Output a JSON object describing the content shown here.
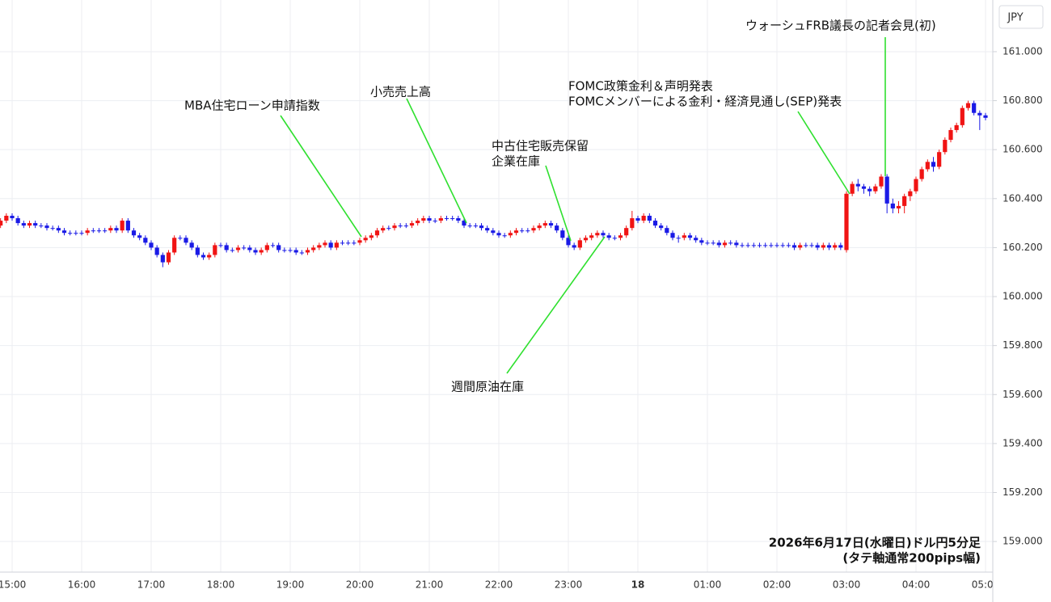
{
  "chart_data": {
    "type": "candlestick",
    "y_axis_label": "JPY",
    "grid": true,
    "up_color": "#f01414",
    "down_color": "#1a1ae6",
    "ylim": [
      158.875,
      161.211
    ],
    "yticks": [
      {
        "value": 159.0,
        "label": "159.000"
      },
      {
        "value": 159.2,
        "label": "159.200"
      },
      {
        "value": 159.4,
        "label": "159.400"
      },
      {
        "value": 159.6,
        "label": "159.600"
      },
      {
        "value": 159.8,
        "label": "159.800"
      },
      {
        "value": 160.0,
        "label": "160.000"
      },
      {
        "value": 160.2,
        "label": "160.200"
      },
      {
        "value": 160.4,
        "label": "160.400"
      },
      {
        "value": 160.6,
        "label": "160.600"
      },
      {
        "value": 160.8,
        "label": "160.800"
      },
      {
        "value": 161.0,
        "label": "161.000"
      }
    ],
    "categories": [
      null,
      null,
      "15:00",
      null,
      null,
      null,
      null,
      null,
      null,
      null,
      null,
      null,
      null,
      null,
      "16:00",
      null,
      null,
      null,
      null,
      null,
      null,
      null,
      null,
      null,
      null,
      null,
      "17:00",
      null,
      null,
      null,
      null,
      null,
      null,
      null,
      null,
      null,
      null,
      null,
      "18:00",
      null,
      null,
      null,
      null,
      null,
      null,
      null,
      null,
      null,
      null,
      null,
      "19:00",
      null,
      null,
      null,
      null,
      null,
      null,
      null,
      null,
      null,
      null,
      null,
      "20:00",
      null,
      null,
      null,
      null,
      null,
      null,
      null,
      null,
      null,
      null,
      null,
      "21:00",
      null,
      null,
      null,
      null,
      null,
      null,
      null,
      null,
      null,
      null,
      null,
      "22:00",
      null,
      null,
      null,
      null,
      null,
      null,
      null,
      null,
      null,
      null,
      null,
      "23:00",
      null,
      null,
      null,
      null,
      null,
      null,
      null,
      null,
      null,
      null,
      null,
      "18",
      null,
      null,
      null,
      null,
      null,
      null,
      null,
      null,
      null,
      null,
      null,
      "01:00",
      null,
      null,
      null,
      null,
      null,
      null,
      null,
      null,
      null,
      null,
      null,
      "02:00",
      null,
      null,
      null,
      null,
      null,
      null,
      null,
      null,
      null,
      null,
      null,
      "03:00",
      null,
      null,
      null,
      null,
      null,
      null,
      null,
      null,
      null,
      null,
      null,
      "04:00",
      null,
      null,
      null,
      null,
      null,
      null,
      null,
      null,
      null,
      null,
      null,
      "05:00"
    ],
    "open": [
      160.29,
      160.31,
      160.33,
      160.32,
      160.3,
      160.29,
      160.3,
      160.29,
      160.29,
      160.28,
      160.28,
      160.27,
      160.26,
      160.26,
      160.26,
      160.26,
      160.27,
      160.27,
      160.27,
      160.27,
      160.28,
      160.27,
      160.31,
      160.27,
      160.25,
      160.24,
      160.22,
      160.2,
      160.17,
      160.14,
      160.18,
      160.24,
      160.24,
      160.22,
      160.2,
      160.17,
      160.16,
      160.17,
      160.21,
      160.21,
      160.19,
      160.19,
      160.2,
      160.2,
      160.19,
      160.18,
      160.19,
      160.21,
      160.21,
      160.19,
      160.19,
      160.19,
      160.18,
      160.18,
      160.19,
      160.2,
      160.21,
      160.22,
      160.2,
      160.22,
      160.22,
      160.22,
      160.22,
      160.23,
      160.24,
      160.25,
      160.27,
      160.28,
      160.28,
      160.29,
      160.29,
      160.29,
      160.3,
      160.31,
      160.32,
      160.31,
      160.31,
      160.32,
      160.32,
      160.32,
      160.31,
      160.29,
      160.29,
      160.29,
      160.28,
      160.27,
      160.26,
      160.25,
      160.25,
      160.26,
      160.27,
      160.27,
      160.27,
      160.28,
      160.29,
      160.3,
      160.29,
      160.27,
      160.24,
      160.21,
      160.2,
      160.23,
      160.24,
      160.25,
      160.26,
      160.25,
      160.24,
      160.24,
      160.25,
      160.28,
      160.32,
      160.31,
      160.33,
      160.31,
      160.29,
      160.28,
      160.26,
      160.24,
      160.24,
      160.25,
      160.24,
      160.23,
      160.22,
      160.22,
      160.22,
      160.21,
      160.22,
      160.22,
      160.21,
      160.21,
      160.21,
      160.21,
      160.21,
      160.21,
      160.21,
      160.21,
      160.21,
      160.21,
      160.2,
      160.21,
      160.21,
      160.21,
      160.2,
      160.21,
      160.2,
      160.21,
      160.19,
      160.42,
      160.46,
      160.45,
      160.44,
      160.43,
      160.45,
      160.49,
      160.38,
      160.36,
      160.37,
      160.41,
      160.43,
      160.48,
      160.52,
      160.55,
      160.53,
      160.59,
      160.64,
      160.68,
      160.7,
      160.77,
      160.79,
      160.75,
      160.74
    ],
    "high": [
      160.32,
      160.34,
      160.34,
      160.33,
      160.31,
      160.31,
      160.31,
      160.3,
      160.3,
      160.29,
      160.29,
      160.28,
      160.27,
      160.27,
      160.27,
      160.28,
      160.28,
      160.28,
      160.28,
      160.29,
      160.29,
      160.32,
      160.32,
      160.28,
      160.26,
      160.25,
      160.23,
      160.21,
      160.18,
      160.19,
      160.25,
      160.25,
      160.25,
      160.23,
      160.21,
      160.18,
      160.18,
      160.22,
      160.22,
      160.22,
      160.2,
      160.21,
      160.21,
      160.21,
      160.2,
      160.2,
      160.22,
      160.22,
      160.22,
      160.2,
      160.2,
      160.2,
      160.19,
      160.2,
      160.21,
      160.22,
      160.23,
      160.23,
      160.23,
      160.23,
      160.23,
      160.23,
      160.24,
      160.25,
      160.26,
      160.28,
      160.29,
      160.29,
      160.3,
      160.3,
      160.3,
      160.31,
      160.32,
      160.33,
      160.33,
      160.32,
      160.33,
      160.33,
      160.33,
      160.33,
      160.32,
      160.3,
      160.3,
      160.3,
      160.29,
      160.28,
      160.27,
      160.26,
      160.27,
      160.28,
      160.28,
      160.28,
      160.29,
      160.3,
      160.31,
      160.31,
      160.3,
      160.28,
      160.25,
      160.22,
      160.24,
      160.25,
      160.26,
      160.27,
      160.27,
      160.26,
      160.25,
      160.26,
      160.29,
      160.35,
      160.33,
      160.34,
      160.34,
      160.32,
      160.3,
      160.29,
      160.27,
      160.25,
      160.26,
      160.26,
      160.25,
      160.24,
      160.23,
      160.23,
      160.23,
      160.23,
      160.23,
      160.23,
      160.22,
      160.22,
      160.22,
      160.22,
      160.22,
      160.22,
      160.22,
      160.22,
      160.22,
      160.22,
      160.22,
      160.22,
      160.22,
      160.22,
      160.22,
      160.22,
      160.22,
      160.22,
      160.43,
      160.47,
      160.48,
      160.46,
      160.45,
      160.46,
      160.5,
      160.5,
      160.4,
      160.39,
      160.42,
      160.44,
      160.49,
      160.53,
      160.56,
      160.57,
      160.6,
      160.65,
      160.69,
      160.71,
      160.78,
      160.8,
      160.8,
      160.76,
      160.75
    ],
    "low": [
      160.28,
      160.3,
      160.31,
      160.29,
      160.28,
      160.28,
      160.28,
      160.28,
      160.27,
      160.27,
      160.26,
      160.25,
      160.25,
      160.25,
      160.25,
      160.25,
      160.26,
      160.26,
      160.26,
      160.26,
      160.26,
      160.26,
      160.26,
      160.24,
      160.23,
      160.21,
      160.19,
      160.16,
      160.12,
      160.13,
      160.17,
      160.23,
      160.21,
      160.19,
      160.16,
      160.15,
      160.15,
      160.16,
      160.2,
      160.18,
      160.18,
      160.18,
      160.19,
      160.18,
      160.17,
      160.17,
      160.18,
      160.2,
      160.18,
      160.18,
      160.18,
      160.17,
      160.17,
      160.17,
      160.18,
      160.19,
      160.2,
      160.19,
      160.19,
      160.21,
      160.21,
      160.21,
      160.21,
      160.22,
      160.23,
      160.24,
      160.26,
      160.27,
      160.27,
      160.28,
      160.28,
      160.28,
      160.29,
      160.3,
      160.3,
      160.3,
      160.3,
      160.31,
      160.31,
      160.3,
      160.28,
      160.28,
      160.28,
      160.27,
      160.26,
      160.25,
      160.24,
      160.24,
      160.24,
      160.25,
      160.26,
      160.26,
      160.26,
      160.27,
      160.28,
      160.28,
      160.26,
      160.23,
      160.2,
      160.19,
      160.19,
      160.22,
      160.23,
      160.24,
      160.24,
      160.23,
      160.23,
      160.23,
      160.24,
      160.27,
      160.3,
      160.3,
      160.3,
      160.28,
      160.27,
      160.25,
      160.23,
      160.22,
      160.23,
      160.23,
      160.22,
      160.21,
      160.21,
      160.21,
      160.2,
      160.2,
      160.21,
      160.2,
      160.2,
      160.2,
      160.2,
      160.2,
      160.2,
      160.2,
      160.2,
      160.2,
      160.2,
      160.19,
      160.19,
      160.2,
      160.2,
      160.19,
      160.19,
      160.19,
      160.19,
      160.19,
      160.18,
      160.41,
      160.43,
      160.42,
      160.41,
      160.42,
      160.44,
      160.34,
      160.34,
      160.34,
      160.34,
      160.39,
      160.42,
      160.47,
      160.51,
      160.51,
      160.52,
      160.58,
      160.63,
      160.67,
      160.69,
      160.76,
      160.74,
      160.68,
      160.72
    ],
    "close": [
      160.31,
      160.33,
      160.32,
      160.3,
      160.29,
      160.3,
      160.29,
      160.29,
      160.28,
      160.28,
      160.27,
      160.26,
      160.26,
      160.26,
      160.26,
      160.27,
      160.27,
      160.27,
      160.27,
      160.28,
      160.27,
      160.31,
      160.27,
      160.25,
      160.24,
      160.22,
      160.2,
      160.17,
      160.14,
      160.18,
      160.24,
      160.24,
      160.22,
      160.2,
      160.17,
      160.16,
      160.17,
      160.21,
      160.21,
      160.19,
      160.19,
      160.2,
      160.2,
      160.19,
      160.18,
      160.19,
      160.21,
      160.21,
      160.19,
      160.19,
      160.19,
      160.18,
      160.18,
      160.19,
      160.2,
      160.21,
      160.22,
      160.2,
      160.22,
      160.22,
      160.22,
      160.22,
      160.23,
      160.24,
      160.25,
      160.27,
      160.28,
      160.28,
      160.29,
      160.29,
      160.29,
      160.3,
      160.31,
      160.32,
      160.31,
      160.31,
      160.32,
      160.32,
      160.32,
      160.31,
      160.29,
      160.29,
      160.29,
      160.28,
      160.27,
      160.26,
      160.25,
      160.25,
      160.26,
      160.27,
      160.27,
      160.27,
      160.28,
      160.29,
      160.3,
      160.29,
      160.27,
      160.24,
      160.21,
      160.2,
      160.23,
      160.24,
      160.25,
      160.26,
      160.25,
      160.24,
      160.24,
      160.25,
      160.28,
      160.32,
      160.31,
      160.33,
      160.31,
      160.29,
      160.28,
      160.26,
      160.24,
      160.24,
      160.25,
      160.24,
      160.23,
      160.22,
      160.22,
      160.22,
      160.21,
      160.22,
      160.22,
      160.21,
      160.21,
      160.21,
      160.21,
      160.21,
      160.21,
      160.21,
      160.21,
      160.21,
      160.21,
      160.2,
      160.21,
      160.21,
      160.21,
      160.2,
      160.21,
      160.2,
      160.21,
      160.2,
      160.42,
      160.46,
      160.45,
      160.44,
      160.43,
      160.45,
      160.49,
      160.38,
      160.36,
      160.37,
      160.41,
      160.43,
      160.48,
      160.52,
      160.55,
      160.53,
      160.59,
      160.64,
      160.68,
      160.7,
      160.77,
      160.79,
      160.75,
      160.74,
      160.73
    ],
    "annotations": [
      {
        "lines": [
          "MBA住宅ローン申請指数"
        ]
      },
      {
        "lines": [
          "小売売上高"
        ]
      },
      {
        "lines": [
          "中古住宅販売保留",
          "企業在庫"
        ]
      },
      {
        "lines": [
          "週間原油在庫"
        ]
      },
      {
        "lines": [
          "FOMC政策金利＆声明発表",
          "FOMCメンバーによる金利・経済見通し(SEP)発表"
        ]
      },
      {
        "lines": [
          "ウォーシュFRB議長の記者会見(初)"
        ]
      }
    ],
    "note": [
      "2026年6月17日(水曜日)ドル円5分足",
      "(タテ軸通常200pips幅)"
    ]
  }
}
